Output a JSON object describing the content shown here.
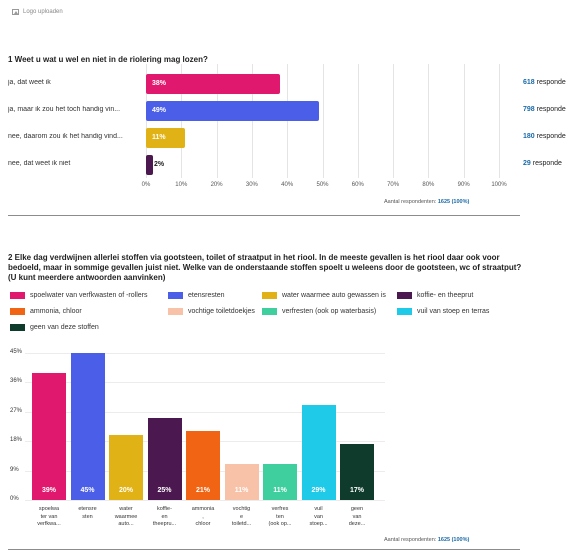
{
  "logo": {
    "label": "Logo uploaden",
    "icon": "image-icon"
  },
  "q1": {
    "title": "1 Weet u wat u wel en niet in de riolering mag lozen?",
    "rows": [
      {
        "label": "ja, dat weet ik",
        "pct_label": "38%",
        "value": 38,
        "count": "618",
        "count_suffix": " responde",
        "color": "#e0196e"
      },
      {
        "label": "ja, maar ik zou het toch handig vin...",
        "pct_label": "49%",
        "value": 49,
        "count": "798",
        "count_suffix": " responde",
        "color": "#4a5ee8"
      },
      {
        "label": "nee, daarom zou ik het handig vind...",
        "pct_label": "11%",
        "value": 11,
        "count": "180",
        "count_suffix": " responde",
        "color": "#e0b215"
      },
      {
        "label": "nee, dat weet ik niet",
        "pct_label": "2%",
        "value": 2,
        "count": "29",
        "count_suffix": " responde",
        "color": "#4b1950"
      }
    ],
    "axis_ticks": [
      "0%",
      "10%",
      "20%",
      "30%",
      "40%",
      "50%",
      "60%",
      "70%",
      "80%",
      "90%",
      "100%"
    ],
    "respondents_label": "Aantal respondenten:",
    "respondents_value": "1625 (100%)"
  },
  "q2": {
    "title": "2 Elke dag verdwijnen allerlei stoffen via gootsteen, toilet of straatput in het riool. In de meeste gevallen is het riool daar ook voor bedoeld, maar in sommige gevallen juist niet. Welke van de onderstaande stoffen spoelt u weleens door de gootsteen, wc of straatput? (U kunt meerdere antwoorden aanvinken)",
    "legend": [
      {
        "label": "spoelwater van verfkwasten of -rollers",
        "color": "#e0196e"
      },
      {
        "label": "etensresten",
        "color": "#4a5ee8"
      },
      {
        "label": "water waarmee auto gewassen is",
        "color": "#e0b215"
      },
      {
        "label": "koffie- en theeprut",
        "color": "#4b1950"
      },
      {
        "label": "ammonia, chloor",
        "color": "#f06414"
      },
      {
        "label": "vochtige toiletdoekjes",
        "color": "#f8c2a8"
      },
      {
        "label": "verfresten (ook op waterbasis)",
        "color": "#3fcf9e"
      },
      {
        "label": "vuil van stoep en terras",
        "color": "#1fc9e8"
      },
      {
        "label": "geen van deze stoffen",
        "color": "#0e3b2c"
      }
    ],
    "y_ticks": [
      "45%",
      "36%",
      "27%",
      "18%",
      "9%",
      "0%"
    ],
    "respondents_label": "Aantal respondenten:",
    "respondents_value": "1625 (100%)"
  },
  "chart_data": {
    "type": "bar",
    "categories": [
      "spoelwater van verfkwa...",
      "etensresten",
      "water waarmee auto...",
      "koffie- en theepru...",
      "ammonia, chloor",
      "vochtige toiletd...",
      "verfresten (ook op...",
      "vuil van stoep...",
      "geen van deze..."
    ],
    "category_lines": [
      [
        "spoelwa",
        "ter van",
        "verfkwa..."
      ],
      [
        "etensre",
        "sten"
      ],
      [
        "water",
        "waarmee",
        "auto..."
      ],
      [
        "koffie-",
        "en",
        "theepru..."
      ],
      [
        "ammonia",
        ",",
        "chloor"
      ],
      [
        "vochtig",
        "e",
        "toiletd..."
      ],
      [
        "verfres",
        "ten",
        "(ook op..."
      ],
      [
        "vuil",
        "van",
        "stoep..."
      ],
      [
        "geen",
        "van",
        "deze..."
      ]
    ],
    "values": [
      39,
      45,
      20,
      25,
      21,
      11,
      11,
      29,
      17
    ],
    "value_labels": [
      "39%",
      "45%",
      "20%",
      "25%",
      "21%",
      "11%",
      "11%",
      "29%",
      "17%"
    ],
    "colors": [
      "#e0196e",
      "#4a5ee8",
      "#e0b215",
      "#4b1950",
      "#f06414",
      "#f8c2a8",
      "#3fcf9e",
      "#1fc9e8",
      "#0e3b2c"
    ],
    "ylim": [
      0,
      45
    ],
    "grid": true
  }
}
